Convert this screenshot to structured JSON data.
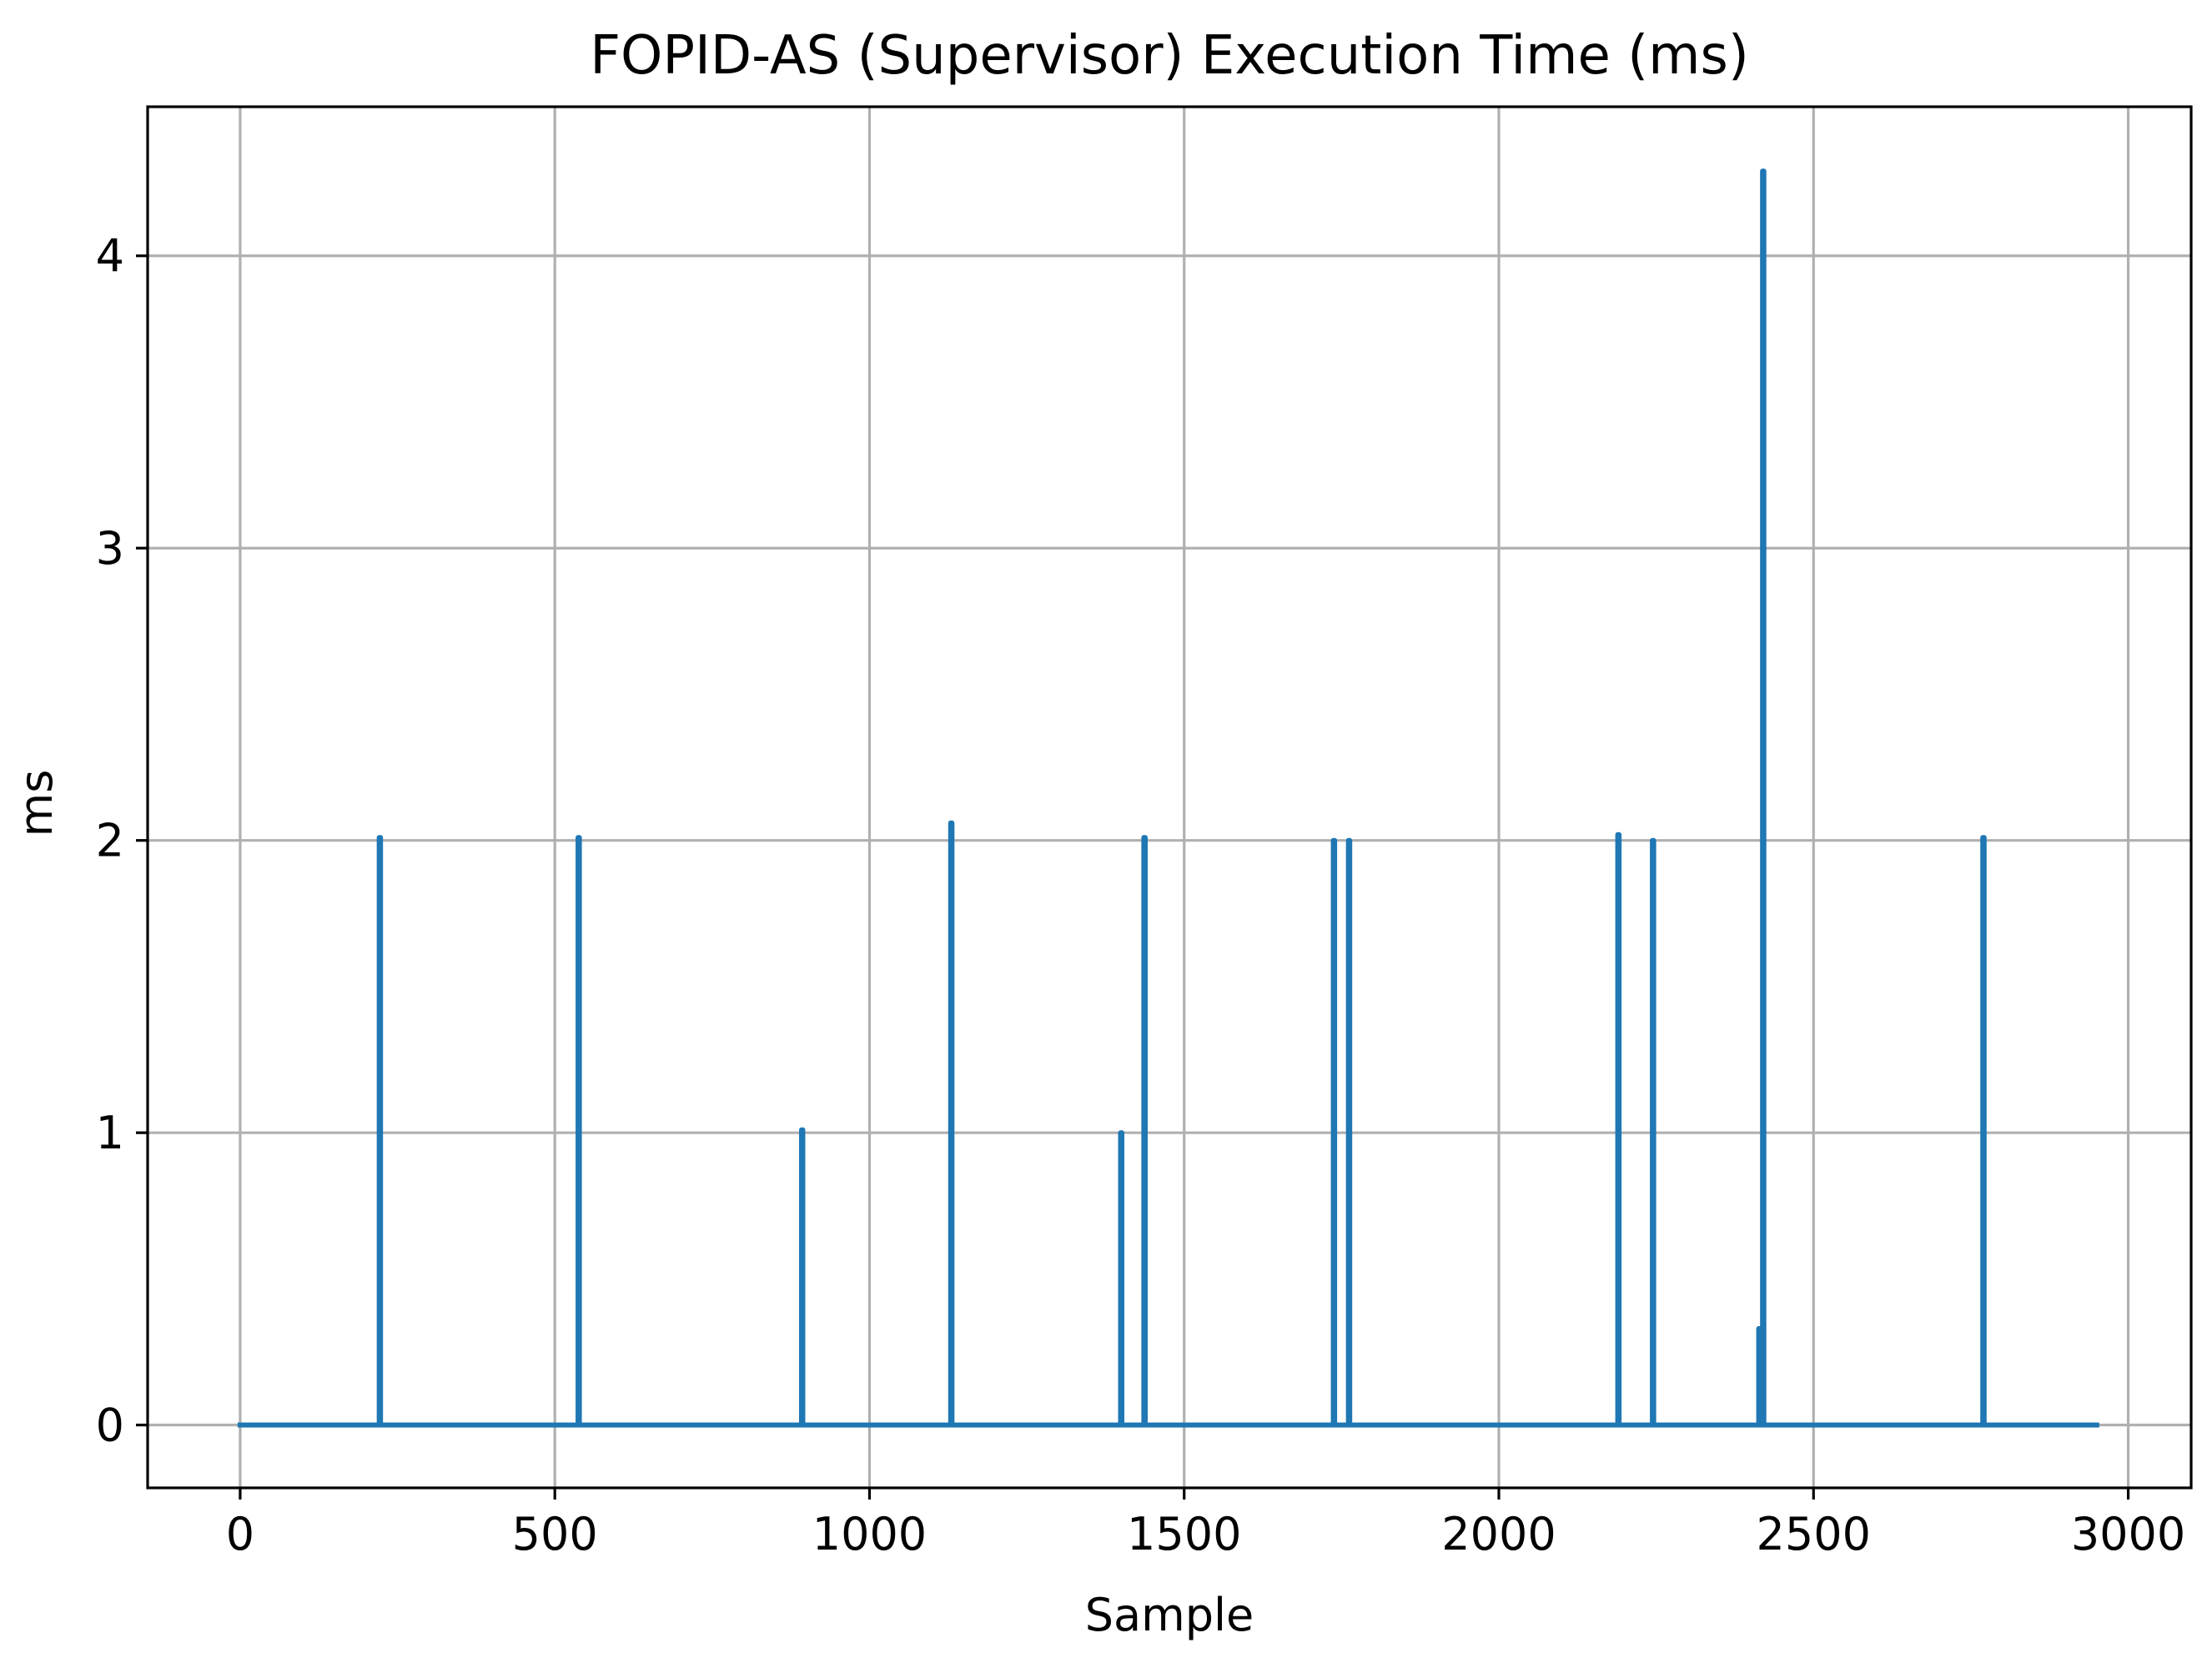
{
  "chart_data": {
    "type": "line",
    "title": "FOPID-AS (Supervisor) Execution Time (ms)",
    "xlabel": "Sample",
    "ylabel": "ms",
    "xlim": [
      -147,
      3100
    ],
    "ylim": [
      -0.215,
      4.51
    ],
    "xticks": [
      0,
      500,
      1000,
      1500,
      2000,
      2500,
      3000
    ],
    "yticks": [
      0,
      1,
      2,
      3,
      4
    ],
    "grid": true,
    "series": [
      {
        "color": "#1f77b4",
        "baseline": 0,
        "x_range": [
          0,
          2950
        ],
        "spikes": [
          {
            "x": 222,
            "y": 2.01
          },
          {
            "x": 538,
            "y": 2.01
          },
          {
            "x": 893,
            "y": 1.01
          },
          {
            "x": 1130,
            "y": 2.06
          },
          {
            "x": 1400,
            "y": 1.0
          },
          {
            "x": 1437,
            "y": 2.01
          },
          {
            "x": 1738,
            "y": 2.0
          },
          {
            "x": 1762,
            "y": 2.0
          },
          {
            "x": 2190,
            "y": 2.02
          },
          {
            "x": 2245,
            "y": 2.0
          },
          {
            "x": 2414,
            "y": 0.33
          },
          {
            "x": 2420,
            "y": 4.29
          },
          {
            "x": 2770,
            "y": 2.01
          }
        ]
      }
    ]
  }
}
